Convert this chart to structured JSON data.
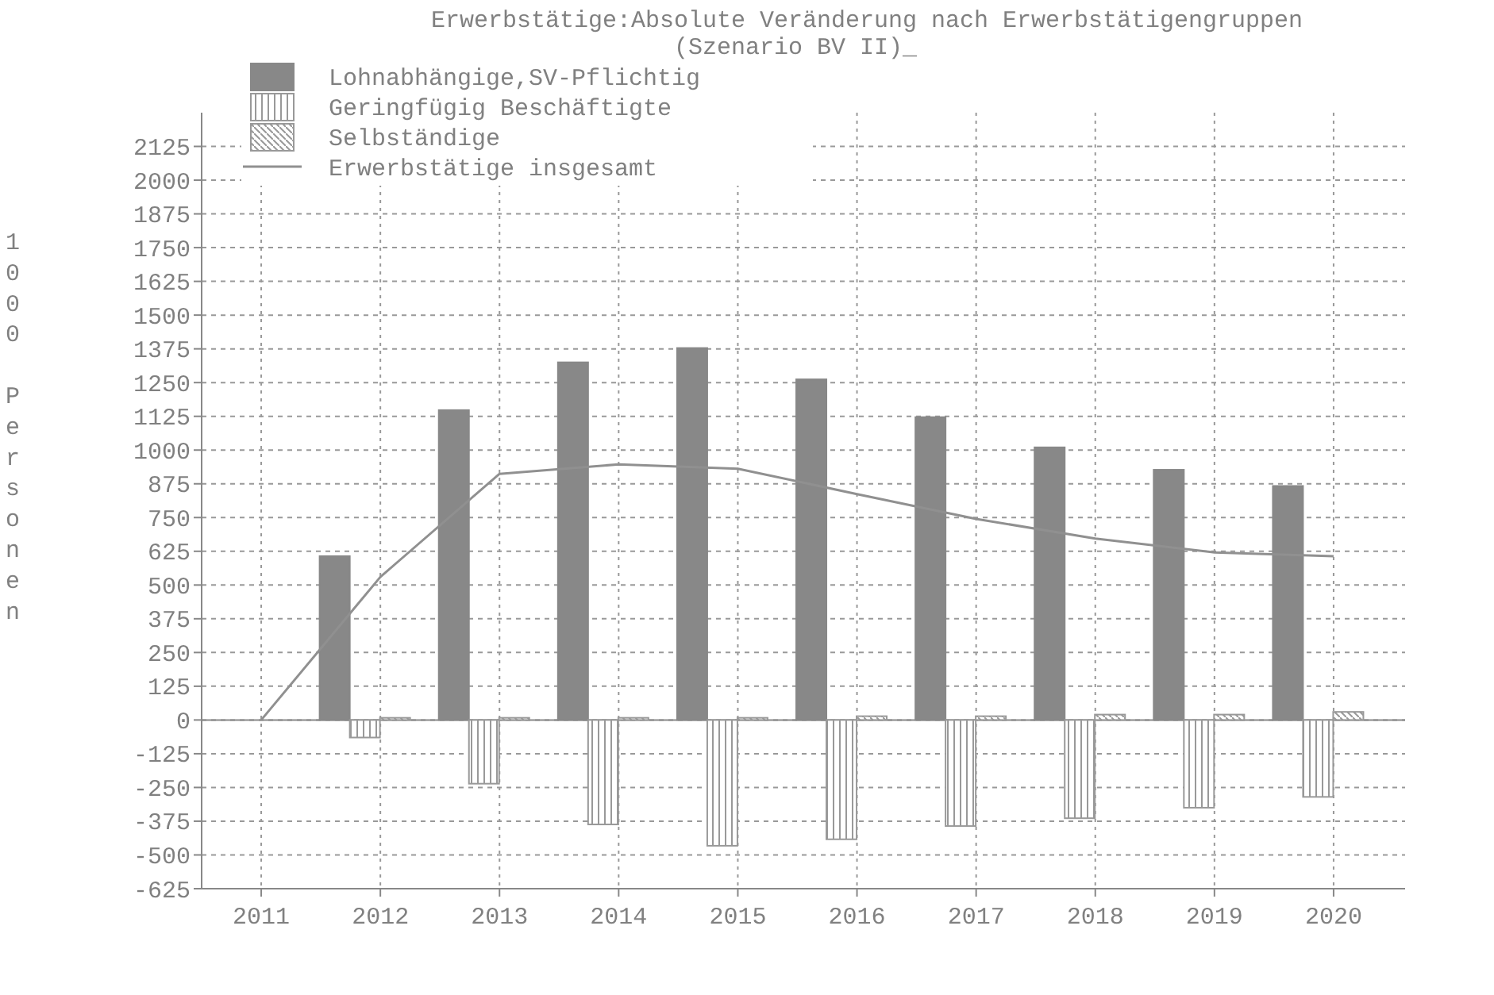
{
  "chart_data": {
    "type": "bar",
    "title": "Erwerbstätige:Absolute Veränderung nach Erwerbstätigengruppen",
    "subtitle": "(Szenario BV II)_",
    "ylabel": "1000 Personen",
    "xlim": [
      2010.5,
      2020.6
    ],
    "xticks": [
      2011,
      2012,
      2013,
      2014,
      2015,
      2016,
      2017,
      2018,
      2019,
      2020
    ],
    "ylim": [
      -625,
      2250
    ],
    "yticks": [
      -625,
      -500,
      -375,
      -250,
      -125,
      0,
      125,
      250,
      375,
      500,
      625,
      750,
      875,
      1000,
      1125,
      1250,
      1375,
      1500,
      1625,
      1750,
      1875,
      2000,
      2125
    ],
    "grid": true,
    "legend": "top left",
    "series": [
      {
        "name": "Lohnabhängige,SV-Pflichtig",
        "color": "#888888",
        "x": [
          2012,
          2013,
          2014,
          2015,
          2016,
          2017,
          2018,
          2019,
          2020
        ],
        "values": [
          607,
          1148,
          1325,
          1378,
          1262,
          1122,
          1010,
          927,
          867
        ]
      },
      {
        "name": "Geringfügig Beschäftigte",
        "color": "#999999",
        "x": [
          2012,
          2013,
          2014,
          2015,
          2016,
          2017,
          2018,
          2019,
          2020
        ],
        "values": [
          -65,
          -236,
          -387,
          -466,
          -442,
          -393,
          -364,
          -325,
          -285
        ]
      },
      {
        "name": "Selbständige",
        "color": "#999999",
        "x": [
          2012,
          2013,
          2014,
          2015,
          2016,
          2017,
          2018,
          2019,
          2020
        ],
        "values": [
          8,
          8,
          8,
          8,
          14,
          14,
          20,
          20,
          30
        ]
      },
      {
        "name": "Erwerbstätige insgesamt",
        "type": "line",
        "color": "#909090",
        "x": [
          2011,
          2012,
          2013,
          2014,
          2015,
          2016,
          2017,
          2018,
          2019,
          2020
        ],
        "values": [
          0,
          530,
          912,
          947,
          931,
          837,
          745,
          672,
          621,
          607
        ]
      }
    ]
  }
}
